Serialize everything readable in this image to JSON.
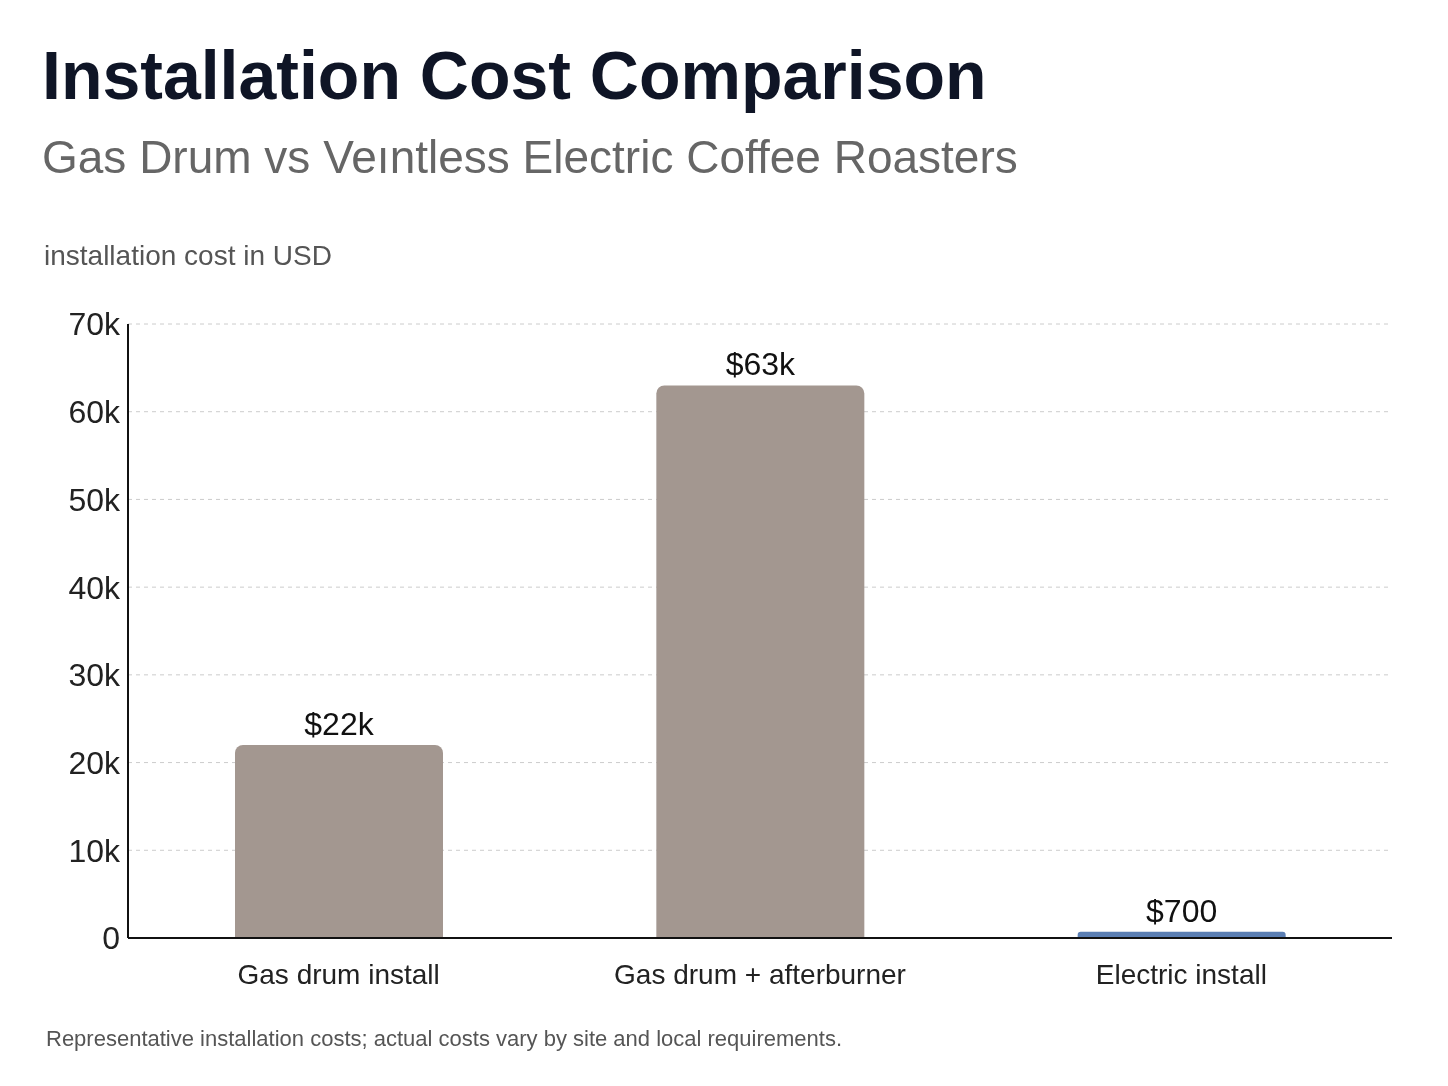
{
  "chart_data": {
    "type": "bar",
    "title": "Installation Cost Comparison",
    "subtitle": "Gas Drum vs Veıntless Electric Coffee Roasters",
    "ylabel": "installation cost in USD",
    "categories": [
      "Gas drum install",
      "Gas drum + afterburner",
      "Electric install"
    ],
    "values": [
      22000,
      63000,
      700
    ],
    "colors": [
      "#a39790",
      "#a39790",
      "#5b7fb4"
    ],
    "value_labels": [
      "$22k",
      "$63k",
      "$700"
    ],
    "ylim": [
      0,
      70000
    ],
    "yticks": [
      {
        "value": 0,
        "label": "0"
      },
      {
        "value": 10000,
        "label": "10k"
      },
      {
        "value": 20000,
        "label": "20k"
      },
      {
        "value": 30000,
        "label": "30k"
      },
      {
        "value": 40000,
        "label": "40k"
      },
      {
        "value": 50000,
        "label": "50k"
      },
      {
        "value": 60000,
        "label": "60k"
      },
      {
        "value": 70000,
        "label": "70k"
      }
    ],
    "grid": "y",
    "annotations": [
      "Representative installation costs; actual costs vary by site and local requirements."
    ]
  }
}
